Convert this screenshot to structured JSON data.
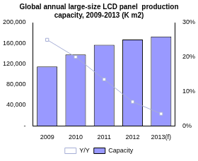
{
  "chart_data": {
    "type": "bar",
    "title": [
      "Global annual large-size LCD panel  production",
      "capacity, 2009-2013 (K m2)"
    ],
    "categories": [
      "2009",
      "2010",
      "2011",
      "2012",
      "2013(f)"
    ],
    "series": [
      {
        "name": "Capacity",
        "type": "bar",
        "color": "#9999ff",
        "values": [
          115000,
          138000,
          157000,
          167000,
          173000
        ]
      },
      {
        "name": "Y/Y",
        "type": "line",
        "axis": "y2",
        "color": "#a6aed6",
        "marker": "square",
        "line_style": "solid",
        "values": [
          25,
          20,
          13.5,
          7,
          3.5
        ]
      }
    ],
    "ylim": [
      0,
      200000
    ],
    "yticks": [
      {
        "value": 0,
        "label": "-"
      },
      {
        "value": 40000,
        "label": "40,000"
      },
      {
        "value": 80000,
        "label": "80,000"
      },
      {
        "value": 120000,
        "label": "120,000"
      },
      {
        "value": 160000,
        "label": "160,000"
      },
      {
        "value": 200000,
        "label": "200,000"
      }
    ],
    "y2lim": [
      0,
      30
    ],
    "y2ticks": [
      {
        "value": 0,
        "label": "0%"
      },
      {
        "value": 10,
        "label": "10%"
      },
      {
        "value": 20,
        "label": "20%"
      },
      {
        "value": 30,
        "label": "30%"
      }
    ],
    "grid": false,
    "legend": "bottom"
  }
}
